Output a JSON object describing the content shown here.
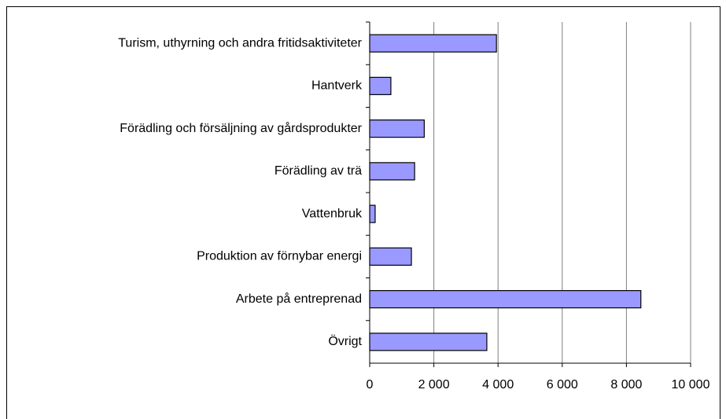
{
  "chart_data": {
    "type": "bar",
    "orientation": "horizontal",
    "categories": [
      "Turism, uthyrning och andra fritidsaktiviteter",
      "Hantverk",
      "Förädling och försäljning av gårdsprodukter",
      "Förädling av trä",
      "Vattenbruk",
      "Produktion av förnybar energi",
      "Arbete på entreprenad",
      "Övrigt"
    ],
    "values": [
      3950,
      660,
      1700,
      1400,
      170,
      1300,
      8450,
      3650
    ],
    "color": "#9999ff",
    "xlim": [
      0,
      10000
    ],
    "xticks": [
      0,
      {
        "value": 2000,
        "label": "2 000"
      },
      {
        "value": 4000,
        "label": "4 000"
      },
      {
        "value": 6000,
        "label": "6 000"
      },
      {
        "value": 8000,
        "label": "8 000"
      },
      {
        "value": 10000,
        "label": "10 000"
      }
    ],
    "grid": true
  }
}
